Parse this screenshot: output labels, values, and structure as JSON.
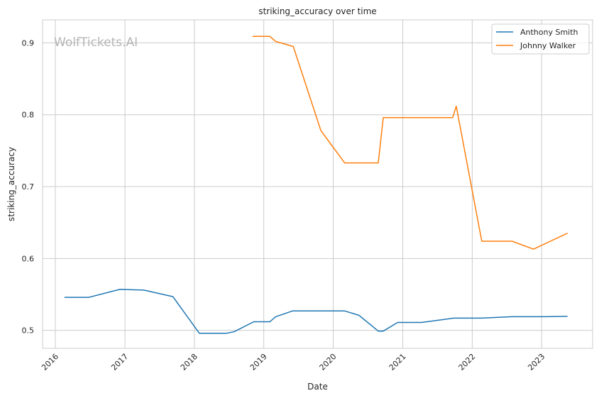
{
  "chart_data": {
    "type": "line",
    "title": "striking_accuracy over time",
    "xlabel": "Date",
    "ylabel": "striking_accuracy",
    "watermark": "WolfTickets.AI",
    "xlim": [
      "2015-10-26",
      "2023-09-26"
    ],
    "ylim": [
      0.475,
      0.932
    ],
    "x_ticks": [
      "2016-01-01",
      "2017-01-01",
      "2018-01-01",
      "2019-01-01",
      "2020-01-01",
      "2021-01-01",
      "2022-01-01",
      "2023-01-01"
    ],
    "x_tick_labels": [
      "2016",
      "2017",
      "2018",
      "2019",
      "2020",
      "2021",
      "2022",
      "2023"
    ],
    "y_ticks": [
      0.5,
      0.6,
      0.7,
      0.8,
      0.9
    ],
    "y_tick_labels": [
      "0.5",
      "0.6",
      "0.7",
      "0.8",
      "0.9"
    ],
    "grid": true,
    "legend_position": "top-right",
    "series": [
      {
        "name": "Anthony Smith",
        "color": "#1f77b4",
        "points": [
          [
            "2016-02-20",
            0.546
          ],
          [
            "2016-06-25",
            0.546
          ],
          [
            "2016-12-05",
            0.557
          ],
          [
            "2017-04-10",
            0.556
          ],
          [
            "2017-09-10",
            0.547
          ],
          [
            "2018-01-27",
            0.496
          ],
          [
            "2018-06-20",
            0.496
          ],
          [
            "2018-07-28",
            0.498
          ],
          [
            "2018-11-10",
            0.512
          ],
          [
            "2019-02-02",
            0.512
          ],
          [
            "2019-03-05",
            0.519
          ],
          [
            "2019-06-01",
            0.527
          ],
          [
            "2019-09-01",
            0.527
          ],
          [
            "2019-12-01",
            0.527
          ],
          [
            "2020-03-01",
            0.527
          ],
          [
            "2020-05-15",
            0.521
          ],
          [
            "2020-08-25",
            0.499
          ],
          [
            "2020-09-20",
            0.499
          ],
          [
            "2020-12-05",
            0.511
          ],
          [
            "2021-04-10",
            0.511
          ],
          [
            "2021-09-25",
            0.517
          ],
          [
            "2022-02-20",
            0.517
          ],
          [
            "2022-07-30",
            0.519
          ],
          [
            "2023-01-20",
            0.519
          ],
          [
            "2023-05-15",
            0.5195
          ]
        ]
      },
      {
        "name": "Johnny Walker",
        "color": "#ff7f0e",
        "points": [
          [
            "2018-11-05",
            0.909
          ],
          [
            "2019-02-02",
            0.909
          ],
          [
            "2019-03-05",
            0.902
          ],
          [
            "2019-06-05",
            0.895
          ],
          [
            "2019-10-28",
            0.778
          ],
          [
            "2020-03-01",
            0.733
          ],
          [
            "2020-08-25",
            0.733
          ],
          [
            "2020-09-20",
            0.796
          ],
          [
            "2021-06-01",
            0.796
          ],
          [
            "2021-09-20",
            0.796
          ],
          [
            "2021-10-09",
            0.812
          ],
          [
            "2022-02-20",
            0.624
          ],
          [
            "2022-07-30",
            0.624
          ],
          [
            "2022-11-19",
            0.613
          ],
          [
            "2023-05-15",
            0.635
          ]
        ]
      }
    ]
  }
}
